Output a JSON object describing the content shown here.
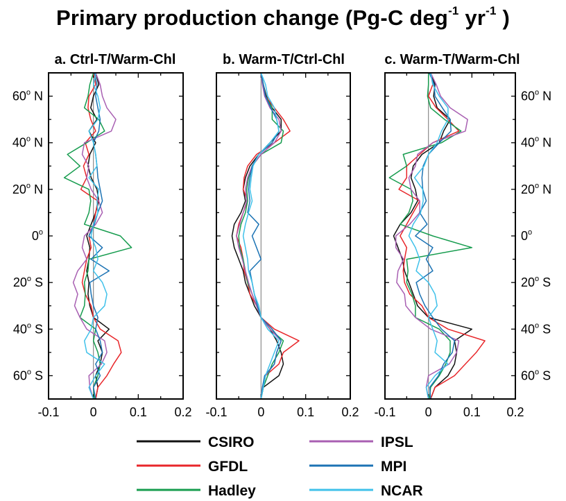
{
  "title": {
    "main": "Primary production change (Pg-C deg",
    "sup1": "-1",
    "mid": " yr",
    "sup2": "-1",
    "end": " )"
  },
  "legend": [
    "CSIRO",
    "GFDL",
    "Hadley",
    "IPSL",
    "MPI",
    "NCAR"
  ],
  "colors": {
    "CSIRO": "#111111",
    "GFDL": "#e8262a",
    "Hadley": "#169c4e",
    "IPSL": "#a85fb2",
    "MPI": "#1c73b4",
    "NCAR": "#3fc1ea"
  },
  "chart_data": [
    {
      "type": "line",
      "title": "a. Ctrl-T/Warm-Chl",
      "orientation": "vertical (latitude on y-axis)",
      "xlim": [
        -0.1,
        0.2
      ],
      "ylim": [
        -70,
        70
      ],
      "xticks": [
        {
          "value": -0.1,
          "label": "-0.1"
        },
        {
          "value": 0,
          "label": "0"
        },
        {
          "value": 0.1,
          "label": "0.1"
        },
        {
          "value": 0.2,
          "label": "0.2"
        }
      ],
      "yticks_left": [
        60,
        40,
        20,
        0,
        -20,
        -40,
        -60
      ],
      "y": [
        70,
        65,
        60,
        55,
        50,
        45,
        40,
        35,
        30,
        25,
        20,
        15,
        10,
        5,
        0,
        -5,
        -10,
        -15,
        -20,
        -25,
        -30,
        -35,
        -40,
        -45,
        -50,
        -55,
        -60,
        -65,
        -70
      ],
      "series": [
        {
          "name": "CSIRO",
          "values": [
            0.005,
            0.012,
            0.0,
            -0.006,
            0.008,
            -0.01,
            0.005,
            -0.008,
            -0.012,
            -0.005,
            0.008,
            0.012,
            0.005,
            -0.005,
            -0.015,
            -0.008,
            -0.01,
            -0.015,
            -0.01,
            -0.012,
            -0.008,
            0.0,
            0.035,
            0.01,
            0.02,
            0.015,
            0.005,
            0.01,
            0.005
          ]
        },
        {
          "name": "GFDL",
          "values": [
            0.0,
            0.005,
            -0.01,
            -0.012,
            -0.006,
            0.005,
            -0.018,
            -0.01,
            -0.022,
            -0.015,
            -0.028,
            0.01,
            0.005,
            0.0,
            -0.01,
            -0.005,
            -0.015,
            -0.02,
            -0.025,
            -0.018,
            -0.005,
            0.0,
            0.015,
            0.055,
            0.062,
            0.045,
            0.03,
            0.01,
            0.005
          ]
        },
        {
          "name": "Hadley",
          "values": [
            0.0,
            -0.008,
            -0.012,
            -0.02,
            0.012,
            0.025,
            -0.015,
            -0.058,
            -0.03,
            -0.065,
            -0.01,
            -0.006,
            -0.01,
            -0.02,
            0.06,
            0.085,
            -0.01,
            -0.012,
            -0.02,
            -0.018,
            -0.02,
            -0.03,
            0.005,
            0.0,
            0.01,
            0.015,
            0.01,
            0.0,
            0.002
          ]
        },
        {
          "name": "IPSL",
          "values": [
            0.005,
            0.015,
            0.02,
            0.03,
            0.05,
            0.04,
            -0.02,
            -0.025,
            -0.01,
            -0.015,
            -0.005,
            0.012,
            0.02,
            0.005,
            -0.02,
            -0.025,
            -0.015,
            -0.035,
            -0.045,
            -0.035,
            -0.042,
            -0.03,
            -0.015,
            0.025,
            0.03,
            0.018,
            -0.01,
            -0.008,
            0.0
          ]
        },
        {
          "name": "MPI",
          "values": [
            0.002,
            0.008,
            0.005,
            0.01,
            0.015,
            0.012,
            0.0,
            0.005,
            0.008,
            0.01,
            0.015,
            0.02,
            0.01,
            0.002,
            -0.01,
            0.02,
            -0.005,
            0.035,
            -0.008,
            -0.005,
            0.0,
            0.01,
            0.005,
            0.015,
            0.02,
            0.005,
            0.015,
            0.0,
            0.005
          ]
        },
        {
          "name": "NCAR",
          "values": [
            0.005,
            0.0,
            0.01,
            0.015,
            0.01,
            -0.01,
            0.0,
            0.005,
            0.008,
            -0.01,
            0.012,
            0.008,
            0.01,
            0.0,
            -0.005,
            0.005,
            0.01,
            0.0,
            0.02,
            0.03,
            0.025,
            0.0,
            -0.005,
            -0.02,
            -0.015,
            0.025,
            0.005,
            -0.01,
            0.0
          ]
        }
      ]
    },
    {
      "type": "line",
      "title": "b. Warm-T/Ctrl-Chl",
      "orientation": "vertical (latitude on y-axis)",
      "xlim": [
        -0.1,
        0.2
      ],
      "ylim": [
        -70,
        70
      ],
      "xticks": [
        {
          "value": -0.1,
          "label": "-0.1"
        },
        {
          "value": 0,
          "label": "0"
        },
        {
          "value": 0.1,
          "label": "0.1"
        },
        {
          "value": 0.2,
          "label": "0.2"
        }
      ],
      "y": [
        70,
        65,
        60,
        55,
        50,
        45,
        40,
        35,
        30,
        25,
        20,
        15,
        10,
        5,
        0,
        -5,
        -10,
        -15,
        -20,
        -25,
        -30,
        -35,
        -40,
        -45,
        -50,
        -55,
        -60,
        -65,
        -70
      ],
      "series": [
        {
          "name": "CSIRO",
          "values": [
            0.0,
            0.005,
            0.012,
            0.025,
            0.045,
            0.045,
            0.02,
            -0.005,
            -0.025,
            -0.035,
            -0.04,
            -0.035,
            -0.045,
            -0.06,
            -0.065,
            -0.06,
            -0.05,
            -0.04,
            -0.035,
            -0.025,
            -0.015,
            0.0,
            0.02,
            0.035,
            0.045,
            0.05,
            0.04,
            0.005,
            0.0
          ]
        },
        {
          "name": "GFDL",
          "values": [
            0.0,
            0.005,
            0.01,
            0.03,
            0.05,
            0.065,
            0.03,
            -0.01,
            -0.03,
            -0.038,
            -0.04,
            -0.03,
            -0.04,
            -0.05,
            -0.055,
            -0.045,
            -0.04,
            -0.038,
            -0.03,
            -0.025,
            -0.01,
            0.0,
            0.03,
            0.085,
            0.05,
            0.04,
            0.01,
            0.005,
            0.0
          ]
        },
        {
          "name": "Hadley",
          "values": [
            0.0,
            0.005,
            0.01,
            0.025,
            0.025,
            0.05,
            0.045,
            0.0,
            -0.02,
            -0.028,
            -0.032,
            -0.03,
            -0.035,
            -0.045,
            -0.05,
            -0.048,
            -0.04,
            -0.035,
            -0.03,
            -0.02,
            -0.01,
            0.0,
            0.02,
            0.05,
            0.04,
            0.025,
            0.015,
            0.005,
            0.0
          ]
        },
        {
          "name": "IPSL",
          "values": [
            0.0,
            0.003,
            0.008,
            0.02,
            0.04,
            0.045,
            0.03,
            0.0,
            -0.02,
            -0.03,
            -0.035,
            -0.032,
            -0.04,
            -0.048,
            -0.055,
            -0.05,
            -0.042,
            -0.035,
            -0.028,
            -0.02,
            -0.01,
            0.0,
            0.02,
            0.045,
            0.035,
            0.03,
            0.01,
            0.003,
            0.0
          ]
        },
        {
          "name": "MPI",
          "values": [
            0.0,
            0.005,
            0.01,
            0.022,
            0.035,
            0.04,
            0.025,
            -0.005,
            -0.02,
            -0.025,
            -0.028,
            -0.025,
            -0.03,
            -0.005,
            -0.02,
            -0.01,
            0.0,
            -0.025,
            -0.02,
            -0.015,
            -0.008,
            0.0,
            0.025,
            0.045,
            0.035,
            0.03,
            0.008,
            0.003,
            0.0
          ]
        },
        {
          "name": "NCAR",
          "values": [
            0.0,
            0.01,
            0.015,
            0.03,
            0.035,
            0.04,
            0.02,
            -0.005,
            -0.018,
            -0.022,
            -0.025,
            -0.02,
            -0.028,
            -0.035,
            -0.04,
            -0.035,
            -0.03,
            -0.028,
            -0.02,
            -0.015,
            -0.005,
            0.0,
            0.015,
            0.04,
            0.03,
            0.02,
            0.01,
            0.005,
            0.0
          ]
        }
      ]
    },
    {
      "type": "line",
      "title": "c. Warm-T/Warm-Chl",
      "orientation": "vertical (latitude on y-axis)",
      "xlim": [
        -0.1,
        0.2
      ],
      "ylim": [
        -70,
        70
      ],
      "xticks": [
        {
          "value": -0.1,
          "label": "-0.1"
        },
        {
          "value": 0,
          "label": "0"
        },
        {
          "value": 0.1,
          "label": "0.1"
        },
        {
          "value": 0.2,
          "label": "0.2"
        }
      ],
      "yticks_right": [
        60,
        40,
        20,
        0,
        -20,
        -40,
        -60
      ],
      "y": [
        70,
        65,
        60,
        55,
        50,
        45,
        40,
        35,
        30,
        25,
        20,
        15,
        10,
        5,
        0,
        -5,
        -10,
        -15,
        -20,
        -25,
        -30,
        -35,
        -40,
        -45,
        -50,
        -55,
        -60,
        -65,
        -70
      ],
      "series": [
        {
          "name": "CSIRO",
          "values": [
            0.005,
            0.015,
            0.012,
            0.02,
            0.05,
            0.035,
            0.025,
            -0.015,
            -0.035,
            -0.04,
            -0.03,
            -0.025,
            -0.04,
            -0.065,
            -0.08,
            -0.07,
            -0.06,
            -0.055,
            -0.045,
            -0.035,
            -0.025,
            0.0,
            0.1,
            0.06,
            0.065,
            0.06,
            0.045,
            0.015,
            0.005
          ]
        },
        {
          "name": "GFDL",
          "values": [
            0.005,
            0.01,
            0.0,
            0.018,
            0.045,
            0.07,
            0.01,
            -0.02,
            -0.05,
            -0.05,
            -0.068,
            -0.02,
            -0.035,
            -0.05,
            -0.065,
            -0.05,
            -0.055,
            -0.058,
            -0.055,
            -0.043,
            -0.015,
            0.0,
            0.045,
            0.13,
            0.11,
            0.085,
            0.06,
            0.015,
            0.005
          ]
        },
        {
          "name": "Hadley",
          "values": [
            0.0,
            0.0,
            -0.002,
            0.005,
            0.037,
            0.075,
            0.03,
            -0.058,
            -0.05,
            -0.09,
            -0.04,
            -0.036,
            -0.045,
            -0.065,
            0.01,
            0.1,
            -0.05,
            -0.047,
            -0.05,
            -0.038,
            -0.03,
            -0.03,
            0.025,
            0.05,
            0.05,
            0.04,
            0.025,
            0.005,
            0.002
          ]
        },
        {
          "name": "IPSL",
          "values": [
            0.005,
            0.018,
            0.028,
            0.05,
            0.09,
            0.085,
            0.01,
            -0.025,
            -0.03,
            -0.045,
            -0.04,
            -0.02,
            -0.02,
            -0.043,
            -0.075,
            -0.075,
            -0.057,
            -0.07,
            -0.073,
            -0.055,
            -0.052,
            -0.03,
            0.005,
            0.07,
            0.065,
            0.048,
            0.0,
            -0.005,
            0.0
          ]
        },
        {
          "name": "MPI",
          "values": [
            0.002,
            0.013,
            0.015,
            0.032,
            0.05,
            0.052,
            0.025,
            0.0,
            -0.012,
            -0.015,
            -0.013,
            -0.005,
            -0.02,
            -0.003,
            -0.03,
            0.01,
            -0.005,
            0.01,
            -0.028,
            -0.02,
            -0.008,
            0.01,
            0.03,
            0.06,
            0.055,
            0.035,
            0.023,
            0.003,
            0.005
          ]
        },
        {
          "name": "NCAR",
          "values": [
            0.005,
            0.01,
            0.025,
            0.045,
            0.045,
            0.03,
            0.02,
            0.0,
            -0.01,
            -0.032,
            -0.013,
            -0.012,
            -0.018,
            -0.035,
            -0.045,
            -0.03,
            -0.02,
            -0.028,
            0.0,
            0.015,
            0.02,
            0.0,
            0.01,
            0.02,
            0.015,
            0.045,
            0.015,
            -0.005,
            0.0
          ]
        }
      ]
    }
  ]
}
